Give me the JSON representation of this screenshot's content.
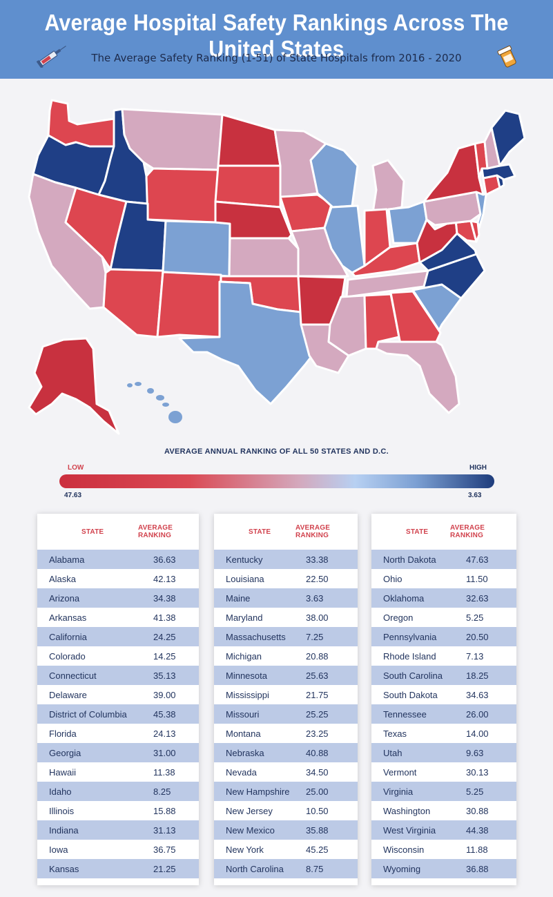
{
  "header": {
    "title": "Average Hospital Safety Rankings Across The United States",
    "subtitle": "The Average Safety Ranking (1-51) of State Hospitals from 2016 - 2020"
  },
  "legend": {
    "title": "AVERAGE ANNUAL RANKING OF ALL 50 STATES AND D.C.",
    "low_label": "LOW",
    "high_label": "HIGH",
    "low_value": "47.63",
    "high_value": "3.63"
  },
  "colors": {
    "dark_red": "#c8313f",
    "red": "#dd4650",
    "pink": "#d4a9bf",
    "light_blue": "#7ca1d3",
    "dark_blue": "#1f3f86",
    "header_bg": "#5f8fce"
  },
  "map_states": [
    {
      "abbr": "WA",
      "category": "red"
    },
    {
      "abbr": "OR",
      "category": "dark_blue"
    },
    {
      "abbr": "CA",
      "category": "pink"
    },
    {
      "abbr": "ID",
      "category": "dark_blue"
    },
    {
      "abbr": "NV",
      "category": "red"
    },
    {
      "abbr": "MT",
      "category": "pink"
    },
    {
      "abbr": "WY",
      "category": "red"
    },
    {
      "abbr": "UT",
      "category": "dark_blue"
    },
    {
      "abbr": "AZ",
      "category": "red"
    },
    {
      "abbr": "CO",
      "category": "light_blue"
    },
    {
      "abbr": "NM",
      "category": "red"
    },
    {
      "abbr": "ND",
      "category": "dark_red"
    },
    {
      "abbr": "SD",
      "category": "red"
    },
    {
      "abbr": "NE",
      "category": "dark_red"
    },
    {
      "abbr": "KS",
      "category": "pink"
    },
    {
      "abbr": "OK",
      "category": "red"
    },
    {
      "abbr": "TX",
      "category": "light_blue"
    },
    {
      "abbr": "MN",
      "category": "pink"
    },
    {
      "abbr": "IA",
      "category": "red"
    },
    {
      "abbr": "MO",
      "category": "pink"
    },
    {
      "abbr": "AR",
      "category": "dark_red"
    },
    {
      "abbr": "LA",
      "category": "pink"
    },
    {
      "abbr": "WI",
      "category": "light_blue"
    },
    {
      "abbr": "IL",
      "category": "light_blue"
    },
    {
      "abbr": "MI",
      "category": "pink"
    },
    {
      "abbr": "IN",
      "category": "red"
    },
    {
      "abbr": "OH",
      "category": "light_blue"
    },
    {
      "abbr": "KY",
      "category": "red"
    },
    {
      "abbr": "TN",
      "category": "pink"
    },
    {
      "abbr": "MS",
      "category": "pink"
    },
    {
      "abbr": "AL",
      "category": "red"
    },
    {
      "abbr": "GA",
      "category": "red"
    },
    {
      "abbr": "FL",
      "category": "pink"
    },
    {
      "abbr": "SC",
      "category": "light_blue"
    },
    {
      "abbr": "NC",
      "category": "dark_blue"
    },
    {
      "abbr": "VA",
      "category": "dark_blue"
    },
    {
      "abbr": "WV",
      "category": "dark_red"
    },
    {
      "abbr": "MD",
      "category": "red"
    },
    {
      "abbr": "DE",
      "category": "red"
    },
    {
      "abbr": "PA",
      "category": "pink"
    },
    {
      "abbr": "NJ",
      "category": "light_blue"
    },
    {
      "abbr": "NY",
      "category": "dark_red"
    },
    {
      "abbr": "CT",
      "category": "red"
    },
    {
      "abbr": "RI",
      "category": "dark_blue"
    },
    {
      "abbr": "MA",
      "category": "dark_blue"
    },
    {
      "abbr": "VT",
      "category": "red"
    },
    {
      "abbr": "NH",
      "category": "pink"
    },
    {
      "abbr": "ME",
      "category": "dark_blue"
    },
    {
      "abbr": "AK",
      "category": "dark_red"
    },
    {
      "abbr": "HI",
      "category": "light_blue"
    }
  ],
  "table_headers": {
    "state": "STATE",
    "ranking": "AVERAGE RANKING"
  },
  "tables": [
    [
      {
        "state": "Alabama",
        "ranking": "36.63"
      },
      {
        "state": "Alaska",
        "ranking": "42.13"
      },
      {
        "state": "Arizona",
        "ranking": "34.38"
      },
      {
        "state": "Arkansas",
        "ranking": "41.38"
      },
      {
        "state": "California",
        "ranking": "24.25"
      },
      {
        "state": "Colorado",
        "ranking": "14.25"
      },
      {
        "state": "Connecticut",
        "ranking": "35.13"
      },
      {
        "state": "Delaware",
        "ranking": "39.00"
      },
      {
        "state": "District of Columbia",
        "ranking": "45.38"
      },
      {
        "state": "Florida",
        "ranking": "24.13"
      },
      {
        "state": "Georgia",
        "ranking": "31.00"
      },
      {
        "state": "Hawaii",
        "ranking": "11.38"
      },
      {
        "state": "Idaho",
        "ranking": "8.25"
      },
      {
        "state": "Illinois",
        "ranking": "15.88"
      },
      {
        "state": "Indiana",
        "ranking": "31.13"
      },
      {
        "state": "Iowa",
        "ranking": "36.75"
      },
      {
        "state": "Kansas",
        "ranking": "21.25"
      }
    ],
    [
      {
        "state": "Kentucky",
        "ranking": "33.38"
      },
      {
        "state": "Louisiana",
        "ranking": "22.50"
      },
      {
        "state": "Maine",
        "ranking": "3.63"
      },
      {
        "state": "Maryland",
        "ranking": "38.00"
      },
      {
        "state": "Massachusetts",
        "ranking": "7.25"
      },
      {
        "state": "Michigan",
        "ranking": "20.88"
      },
      {
        "state": "Minnesota",
        "ranking": "25.63"
      },
      {
        "state": "Mississippi",
        "ranking": "21.75"
      },
      {
        "state": "Missouri",
        "ranking": "25.25"
      },
      {
        "state": "Montana",
        "ranking": "23.25"
      },
      {
        "state": "Nebraska",
        "ranking": "40.88"
      },
      {
        "state": "Nevada",
        "ranking": "34.50"
      },
      {
        "state": "New Hampshire",
        "ranking": "25.00"
      },
      {
        "state": "New Jersey",
        "ranking": "10.50"
      },
      {
        "state": "New Mexico",
        "ranking": "35.88"
      },
      {
        "state": "New York",
        "ranking": "45.25"
      },
      {
        "state": "North Carolina",
        "ranking": "8.75"
      }
    ],
    [
      {
        "state": "North Dakota",
        "ranking": "47.63"
      },
      {
        "state": "Ohio",
        "ranking": "11.50"
      },
      {
        "state": "Oklahoma",
        "ranking": "32.63"
      },
      {
        "state": "Oregon",
        "ranking": "5.25"
      },
      {
        "state": "Pennsylvania",
        "ranking": "20.50"
      },
      {
        "state": "Rhode Island",
        "ranking": "7.13"
      },
      {
        "state": "South Carolina",
        "ranking": "18.25"
      },
      {
        "state": "South Dakota",
        "ranking": "34.63"
      },
      {
        "state": "Tennessee",
        "ranking": "26.00"
      },
      {
        "state": "Texas",
        "ranking": "14.00"
      },
      {
        "state": "Utah",
        "ranking": "9.63"
      },
      {
        "state": "Vermont",
        "ranking": "30.13"
      },
      {
        "state": "Virginia",
        "ranking": "5.25"
      },
      {
        "state": "Washington",
        "ranking": "30.88"
      },
      {
        "state": "West Virginia",
        "ranking": "44.38"
      },
      {
        "state": "Wisconsin",
        "ranking": "11.88"
      },
      {
        "state": "Wyoming",
        "ranking": "36.88"
      }
    ]
  ]
}
